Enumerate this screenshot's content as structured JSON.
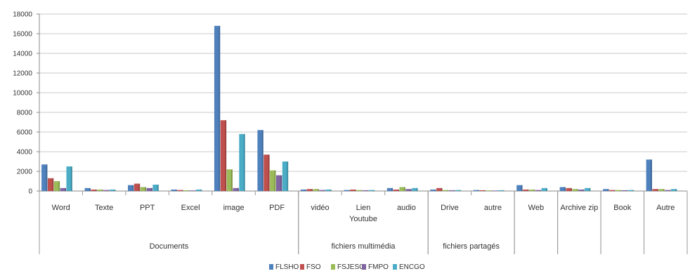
{
  "chart_data": {
    "type": "bar",
    "ylim": [
      0,
      18000
    ],
    "yticks": [
      0,
      2000,
      4000,
      6000,
      8000,
      10000,
      12000,
      14000,
      16000,
      18000
    ],
    "grid": true,
    "legend_position": "bottom",
    "categories": [
      "Word",
      "Texte",
      "PPT",
      "Excel",
      "image",
      "PDF",
      "vidéo",
      "Lien Youtube",
      "audio",
      "Drive",
      "autre",
      "Web",
      "Archive zip",
      "Book",
      "Autre"
    ],
    "groups": [
      {
        "label": "Documents",
        "span": 6
      },
      {
        "label": "fichiers multimédia",
        "span": 3
      },
      {
        "label": "fichiers partagés",
        "span": 2
      },
      {
        "label": "",
        "span": 1
      },
      {
        "label": "",
        "span": 1
      },
      {
        "label": "",
        "span": 1
      },
      {
        "label": "",
        "span": 1
      }
    ],
    "series": [
      {
        "name": "FLSHO",
        "color": "#4F81BD",
        "values": [
          2700,
          300,
          600,
          150,
          16800,
          6200,
          150,
          100,
          300,
          150,
          100,
          600,
          400,
          200,
          3200
        ]
      },
      {
        "name": "FSO",
        "color": "#C0504D",
        "values": [
          1300,
          150,
          750,
          100,
          7200,
          3700,
          200,
          150,
          150,
          300,
          80,
          150,
          300,
          100,
          200
        ]
      },
      {
        "name": "FSJESO",
        "color": "#9BBB59",
        "values": [
          1000,
          150,
          400,
          80,
          2200,
          2100,
          200,
          100,
          400,
          100,
          60,
          150,
          200,
          100,
          200
        ]
      },
      {
        "name": "FMPO",
        "color": "#8064A2",
        "values": [
          300,
          100,
          300,
          60,
          300,
          1600,
          100,
          80,
          200,
          80,
          50,
          100,
          150,
          80,
          100
        ]
      },
      {
        "name": "ENCGO",
        "color": "#4BACC6",
        "values": [
          2500,
          150,
          650,
          150,
          5800,
          3000,
          150,
          100,
          300,
          100,
          80,
          300,
          300,
          100,
          200
        ]
      }
    ]
  }
}
